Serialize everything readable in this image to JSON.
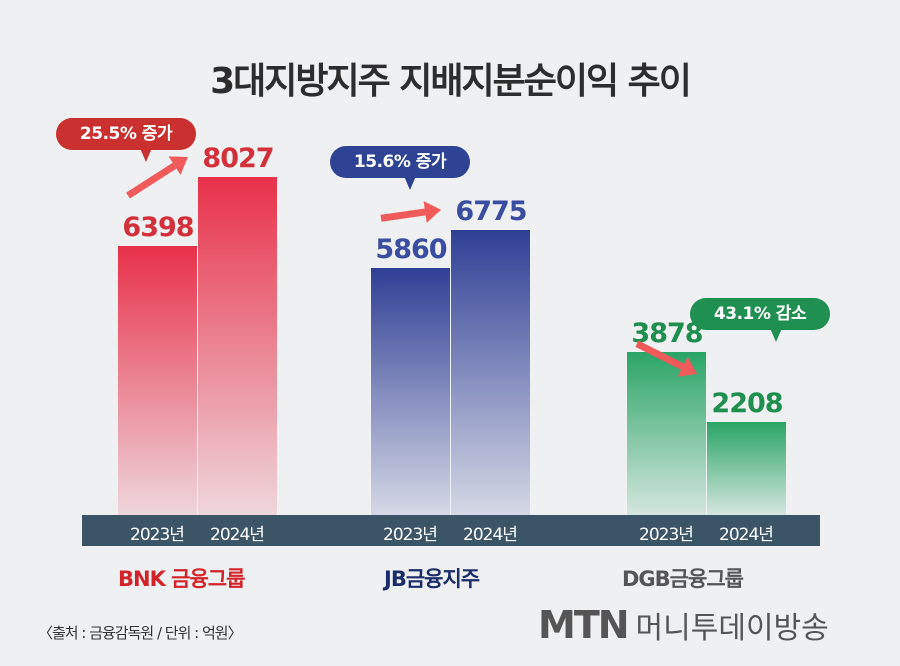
{
  "chart_data": {
    "type": "bar",
    "title": "3대지방지주 지배지분순이익 추이",
    "unit_note": "〈출처 : 금융감독원 / 단위 : 억원〉",
    "categories": [
      "2023년",
      "2024년"
    ],
    "groups": [
      {
        "name": "BNK금융그룹",
        "logo_text": "BNK 금융그룹",
        "values": [
          6398,
          8027
        ],
        "change": "25.5% 증가",
        "color": "#e8314a",
        "label_color": "#d2303b",
        "bubble_color": "#c9302f"
      },
      {
        "name": "JB금융지주",
        "logo_text": "JB금융지주",
        "values": [
          5860,
          6775
        ],
        "change": "15.6% 증가",
        "color": "#2f3f95",
        "label_color": "#3a4da0",
        "bubble_color": "#2f4394"
      },
      {
        "name": "DGB금융그룹",
        "logo_text": "DGB금융그룹",
        "values": [
          3878,
          2208
        ],
        "change": "43.1% 감소",
        "color": "#2aa566",
        "label_color": "#1f8f4f",
        "bubble_color": "#1f8f52"
      }
    ],
    "arrow_color": "#f05a5a"
  },
  "footer": {
    "brand": "MTN",
    "brand_sub": "머니투데이방송"
  }
}
